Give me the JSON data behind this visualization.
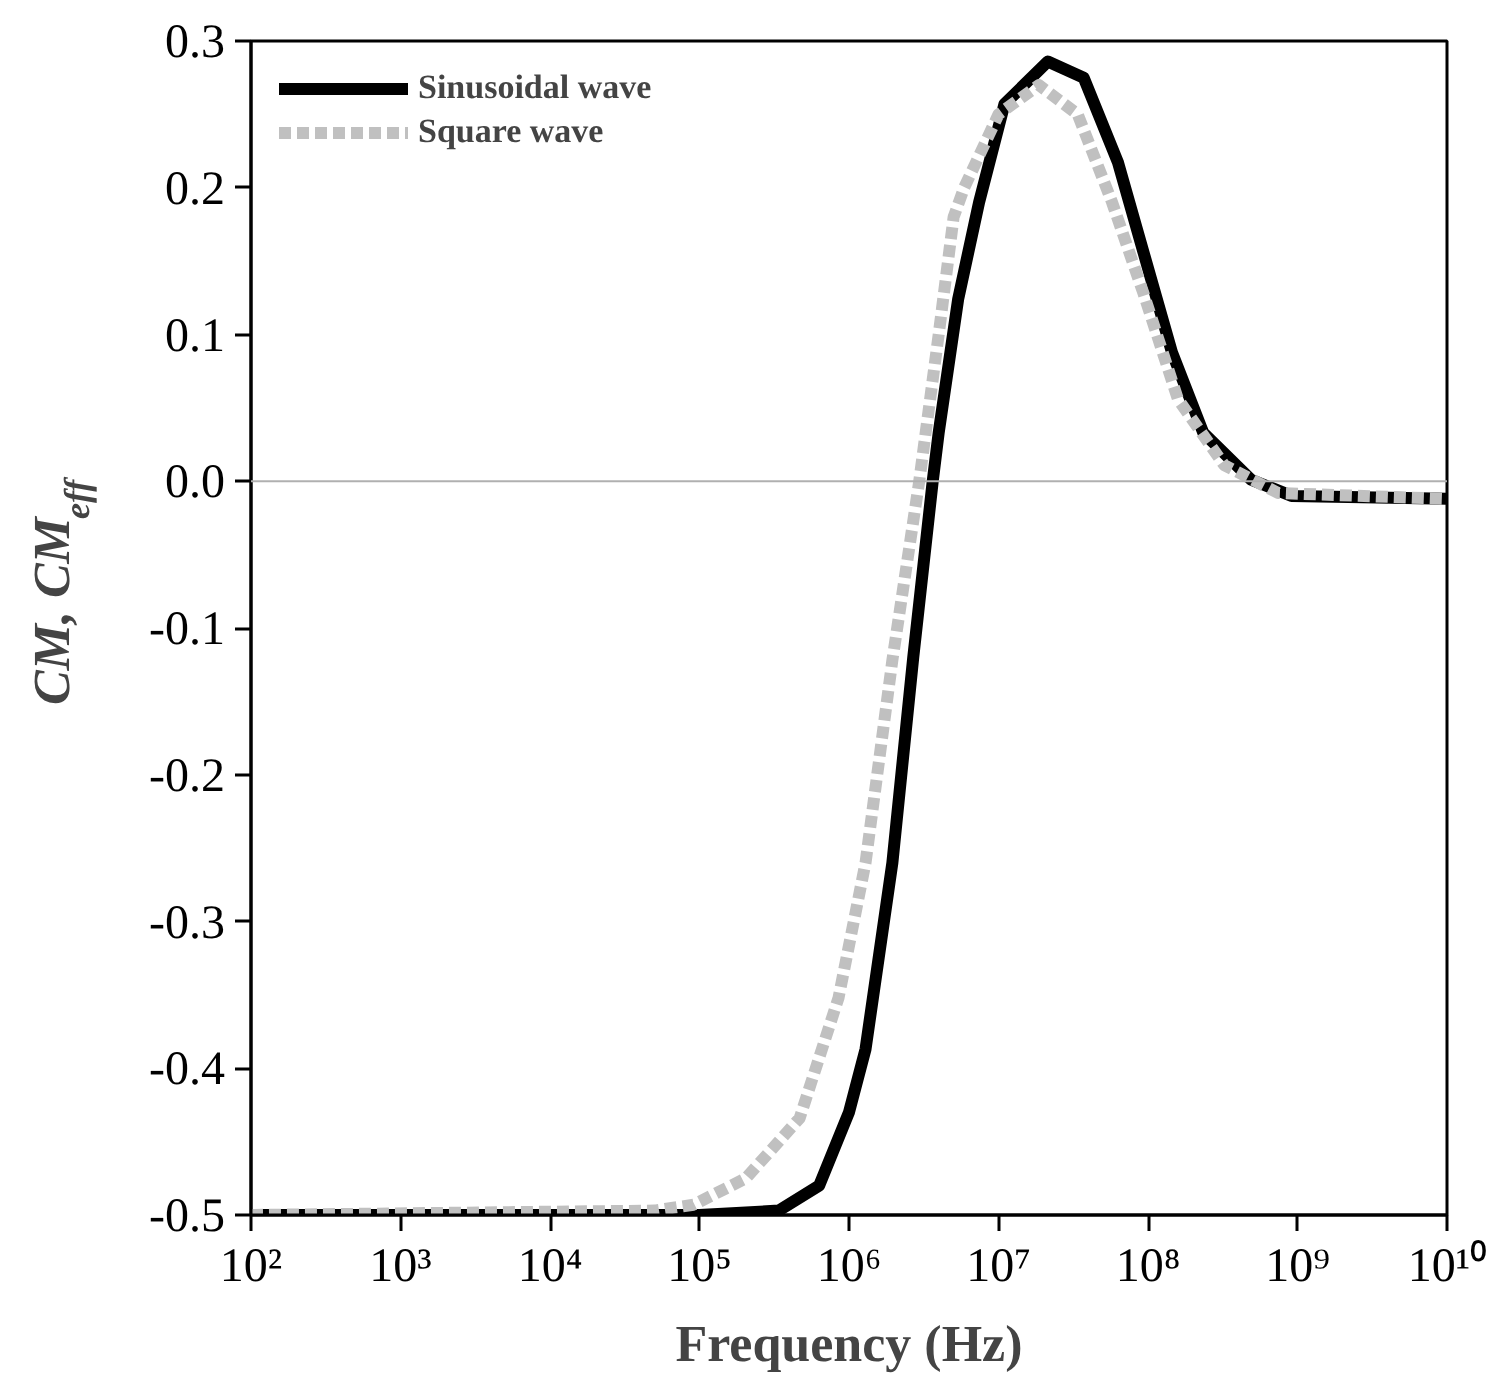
{
  "chart_data": {
    "type": "line",
    "xlabel": "Frequency (Hz)",
    "ylabel": "CM, CM$_{eff}$",
    "log": "x",
    "xlim": [
      100,
      10000000000
    ],
    "ylim": [
      -0.5,
      0.3
    ],
    "xticks": [
      {
        "value": 100,
        "label": "10²"
      },
      {
        "value": 1000,
        "label": "10³"
      },
      {
        "value": 10000,
        "label": "10⁴"
      },
      {
        "value": 100000,
        "label": "10⁵"
      },
      {
        "value": 1000000,
        "label": "10⁶"
      },
      {
        "value": 10000000,
        "label": "10⁷"
      },
      {
        "value": 100000000,
        "label": "10⁸"
      },
      {
        "value": 1000000000,
        "label": "10⁹"
      },
      {
        "value": 10000000000,
        "label": "10¹⁰"
      }
    ],
    "yticks": [
      -0.5,
      -0.4,
      -0.3,
      -0.2,
      -0.1,
      {
        "value": 0,
        "label": "0.0"
      },
      0.1,
      0.2,
      0.3
    ],
    "grid": false,
    "legend": "top left",
    "ref_lines": [
      {
        "axis": "y",
        "value": 0,
        "color": "#b0b0b0"
      }
    ],
    "series": [
      {
        "name": "Sinusoidal wave",
        "color": "#000000",
        "line_style": "solid",
        "x": [
          100,
          100000,
          339000,
          631000,
          1000000,
          1290000,
          1950000,
          2690000,
          3630000,
          3980000,
          5370000,
          7410000,
          10960000,
          21380000,
          37150000,
          63100000,
          93300000,
          144500000,
          234400000,
          489800000,
          912000000,
          10000000000
        ],
        "values": [
          -0.5,
          -0.5,
          -0.497,
          -0.48,
          -0.43,
          -0.387,
          -0.26,
          -0.12,
          0.0,
          0.033,
          0.124,
          0.19,
          0.257,
          0.286,
          0.275,
          0.217,
          0.156,
          0.088,
          0.033,
          0.001,
          -0.01,
          -0.012
        ]
      },
      {
        "name": "Square wave",
        "color": "#c0c0c0",
        "line_style": "dashed",
        "x": [
          100,
          50000,
          91200,
          204200,
          467700,
          851100,
          1290000,
          1950000,
          2950000,
          3980000,
          5010000,
          5890000,
          10000000,
          18620000,
          33880000,
          57540000,
          93300000,
          158500000,
          323600000,
          741300000,
          10000000000
        ],
        "values": [
          -0.5,
          -0.497,
          -0.493,
          -0.475,
          -0.434,
          -0.352,
          -0.26,
          -0.122,
          0.0,
          0.1,
          0.18,
          0.2,
          0.25,
          0.27,
          0.25,
          0.19,
          0.128,
          0.056,
          0.011,
          -0.008,
          -0.012
        ]
      }
    ]
  }
}
